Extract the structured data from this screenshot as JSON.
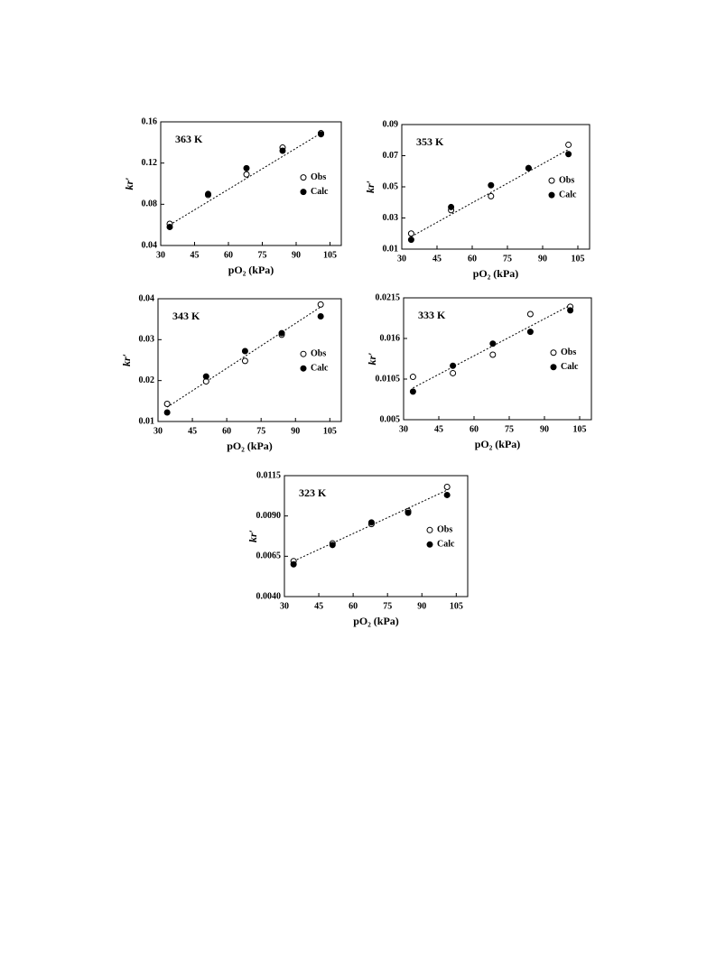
{
  "chart_data": [
    {
      "type": "scatter",
      "title": "363 K",
      "x_label": "pO₂  (kPa)",
      "y_label": "kr′",
      "x": [
        34,
        51,
        68,
        84,
        101
      ],
      "series": [
        {
          "name": "Obs",
          "color": "#000000",
          "marker": "open",
          "values": [
            0.061,
            0.089,
            0.109,
            0.135,
            0.149
          ]
        },
        {
          "name": "Calc",
          "color": "#000000",
          "marker": "filled",
          "values": [
            0.058,
            0.09,
            0.115,
            0.132,
            0.148
          ]
        }
      ],
      "trend": {
        "x": [
          34,
          101
        ],
        "y": [
          0.06,
          0.149
        ]
      },
      "xlim": [
        30,
        110
      ],
      "xticks": [
        30,
        45,
        60,
        75,
        90,
        105
      ],
      "ylim": [
        0.04,
        0.16
      ],
      "yticks": [
        0.04,
        0.08,
        0.12,
        0.16
      ]
    },
    {
      "type": "scatter",
      "title": "353 K",
      "x_label": "pO₂  (kPa)",
      "y_label": "kr′",
      "x": [
        34,
        51,
        68,
        84,
        101
      ],
      "series": [
        {
          "name": "Obs",
          "color": "#000000",
          "marker": "open",
          "values": [
            0.02,
            0.035,
            0.044,
            0.062,
            0.077
          ]
        },
        {
          "name": "Calc",
          "color": "#000000",
          "marker": "filled",
          "values": [
            0.016,
            0.037,
            0.051,
            0.062,
            0.071
          ]
        }
      ],
      "trend": {
        "x": [
          34,
          101
        ],
        "y": [
          0.018,
          0.074
        ]
      },
      "xlim": [
        30,
        110
      ],
      "xticks": [
        30,
        45,
        60,
        75,
        90,
        105
      ],
      "ylim": [
        0.01,
        0.09
      ],
      "yticks": [
        0.01,
        0.03,
        0.05,
        0.07,
        0.09
      ]
    },
    {
      "type": "scatter",
      "title": "343 K",
      "x_label": "pO₂  (kPa)",
      "y_label": "kr′",
      "x": [
        34,
        51,
        68,
        84,
        101
      ],
      "series": [
        {
          "name": "Obs",
          "color": "#000000",
          "marker": "open",
          "values": [
            0.0143,
            0.0198,
            0.0248,
            0.0312,
            0.0386
          ]
        },
        {
          "name": "Calc",
          "color": "#000000",
          "marker": "filled",
          "values": [
            0.0122,
            0.021,
            0.0272,
            0.0316,
            0.0357
          ]
        }
      ],
      "trend": {
        "x": [
          34,
          101
        ],
        "y": [
          0.0135,
          0.038
        ]
      },
      "xlim": [
        30,
        110
      ],
      "xticks": [
        30,
        45,
        60,
        75,
        90,
        105
      ],
      "ylim": [
        0.01,
        0.04
      ],
      "yticks": [
        0.01,
        0.02,
        0.03,
        0.04
      ]
    },
    {
      "type": "scatter",
      "title": "333 K",
      "x_label": "pO₂  (kPa)",
      "y_label": "kr′",
      "x": [
        34,
        51,
        68,
        84,
        101
      ],
      "series": [
        {
          "name": "Obs",
          "color": "#000000",
          "marker": "open",
          "values": [
            0.0108,
            0.0113,
            0.0138,
            0.0193,
            0.0203
          ]
        },
        {
          "name": "Calc",
          "color": "#000000",
          "marker": "filled",
          "values": [
            0.0088,
            0.0123,
            0.0153,
            0.0169,
            0.0198
          ]
        }
      ],
      "trend": {
        "x": [
          34,
          101
        ],
        "y": [
          0.0093,
          0.0205
        ]
      },
      "xlim": [
        30,
        110
      ],
      "xticks": [
        30,
        45,
        60,
        75,
        90,
        105
      ],
      "ylim": [
        0.005,
        0.0215
      ],
      "yticks": [
        0.005,
        0.0105,
        0.016,
        0.0215
      ]
    },
    {
      "type": "scatter",
      "title": "323 K",
      "x_label": "pO₂  (kPa)",
      "y_label": "kr′",
      "x": [
        34,
        51,
        68,
        84,
        101
      ],
      "series": [
        {
          "name": "Obs",
          "color": "#000000",
          "marker": "open",
          "values": [
            0.0062,
            0.0073,
            0.0085,
            0.0093,
            0.0108
          ]
        },
        {
          "name": "Calc",
          "color": "#000000",
          "marker": "filled",
          "values": [
            0.006,
            0.0072,
            0.0086,
            0.0092,
            0.0103
          ]
        }
      ],
      "trend": {
        "x": [
          34,
          101
        ],
        "y": [
          0.0062,
          0.0106
        ]
      },
      "xlim": [
        30,
        110
      ],
      "xticks": [
        30,
        45,
        60,
        75,
        90,
        105
      ],
      "ylim": [
        0.004,
        0.0115
      ],
      "yticks": [
        {
          "value": 0.004,
          "label": "0.0040"
        },
        0.0065,
        {
          "value": 0.009,
          "label": "0.0090"
        },
        0.0115
      ]
    }
  ]
}
